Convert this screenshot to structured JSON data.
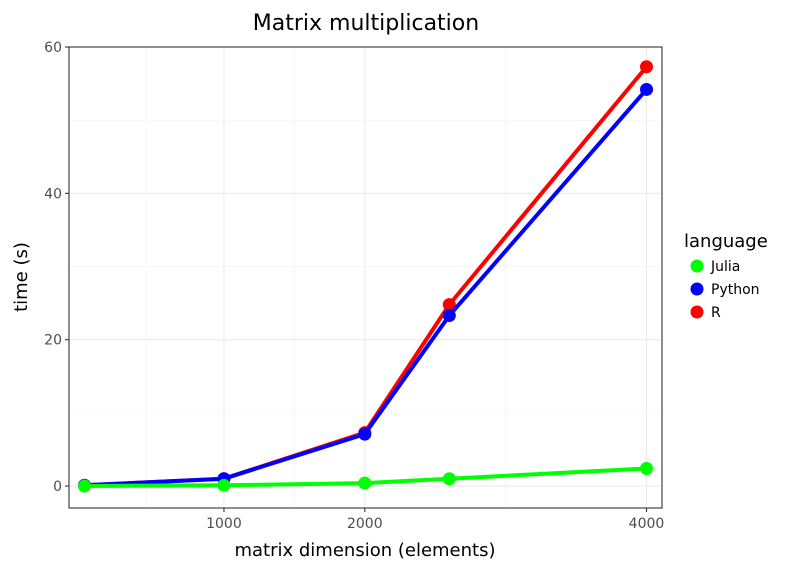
{
  "chart_data": {
    "type": "line",
    "title": "Matrix multiplication",
    "xlabel": "matrix dimension (elements)",
    "ylabel": "time (s)",
    "x": [
      10,
      1000,
      2000,
      2600,
      4000
    ],
    "xlim": [
      -100,
      4110
    ],
    "ylim": [
      -3,
      60
    ],
    "xticks": [
      1000,
      2000,
      4000
    ],
    "yticks": [
      0,
      20,
      40,
      60
    ],
    "grid": true,
    "legend": {
      "title": "language",
      "position": "right"
    },
    "series": [
      {
        "name": "Julia",
        "color": "#00ff00",
        "values": [
          0.0,
          0.1,
          0.4,
          1.0,
          2.4
        ]
      },
      {
        "name": "Python",
        "color": "#0000ff",
        "values": [
          0.1,
          1.0,
          7.1,
          23.3,
          54.2
        ]
      },
      {
        "name": "R",
        "color": "#ff0000",
        "values": [
          0.1,
          1.0,
          7.3,
          24.8,
          57.3
        ]
      }
    ],
    "draw_order": [
      "R",
      "Python",
      "Julia"
    ]
  }
}
